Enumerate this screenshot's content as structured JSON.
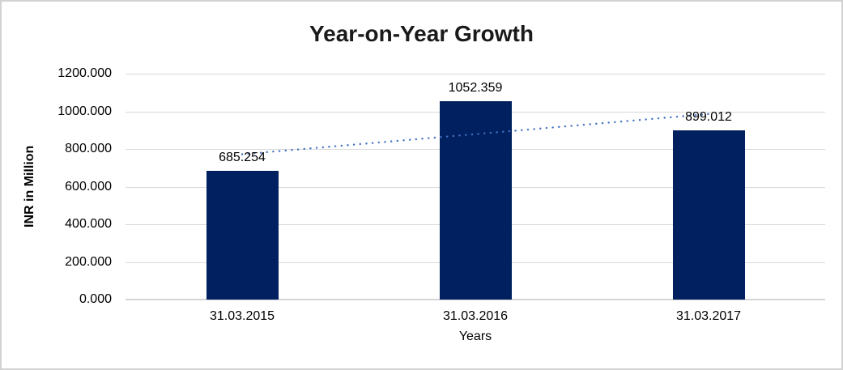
{
  "chart_data": {
    "type": "bar",
    "title": "Year-on-Year Growth",
    "xlabel": "Years",
    "ylabel": "INR in Million",
    "categories": [
      "31.03.2015",
      "31.03.2016",
      "31.03.2017"
    ],
    "values": [
      685.254,
      1052.359,
      899.012
    ],
    "data_labels": [
      "685.254",
      "1052.359",
      "899.012"
    ],
    "ylim": [
      0,
      1200
    ],
    "ytick_step": 200,
    "ytick_labels": [
      "0.000",
      "200.000",
      "400.000",
      "600.000",
      "800.000",
      "1000.000",
      "1200.000"
    ],
    "grid": true,
    "legend": false,
    "trendline": {
      "type": "linear",
      "style": "dotted"
    },
    "colors": {
      "bar": "#002060",
      "trendline": "#4472C4",
      "gridline": "#d9d9d9",
      "axis_line": "#d5d5d5",
      "text": "#000000",
      "background": "#ffffff",
      "frame_border": "#d2d2d2"
    }
  }
}
